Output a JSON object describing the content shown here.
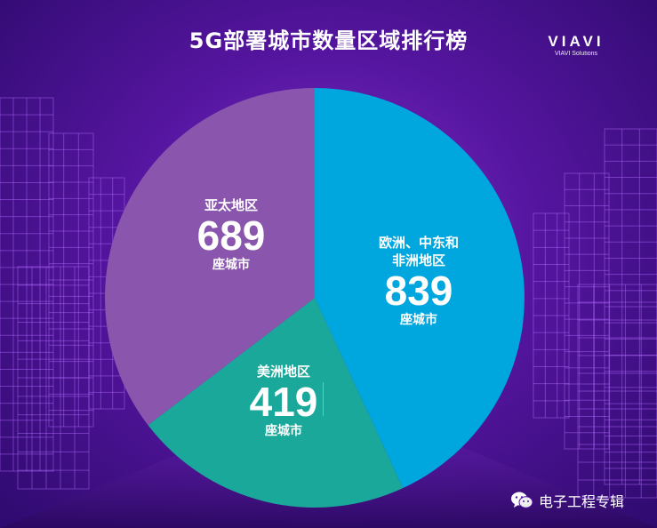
{
  "title": "5G部署城市数量区域排行榜",
  "brand": {
    "logo": "VIAVI",
    "tagline": "VIAVI Solutions"
  },
  "chart_data": {
    "type": "pie",
    "title": "5G部署城市数量区域排行榜",
    "unit": "座城市",
    "slices": [
      {
        "label": "欧洲、中东和非洲地区",
        "label_lines": [
          "欧洲、中东和",
          "非洲地区"
        ],
        "value": 839,
        "color": "#00a7de"
      },
      {
        "label": "美洲地区",
        "value": 419,
        "color": "#1aa89a"
      },
      {
        "label": "亚太地区",
        "value": 689,
        "color": "#8a56ad"
      }
    ]
  },
  "watermark": {
    "text": "电子工程专辑",
    "icon": "wechat-icon"
  }
}
